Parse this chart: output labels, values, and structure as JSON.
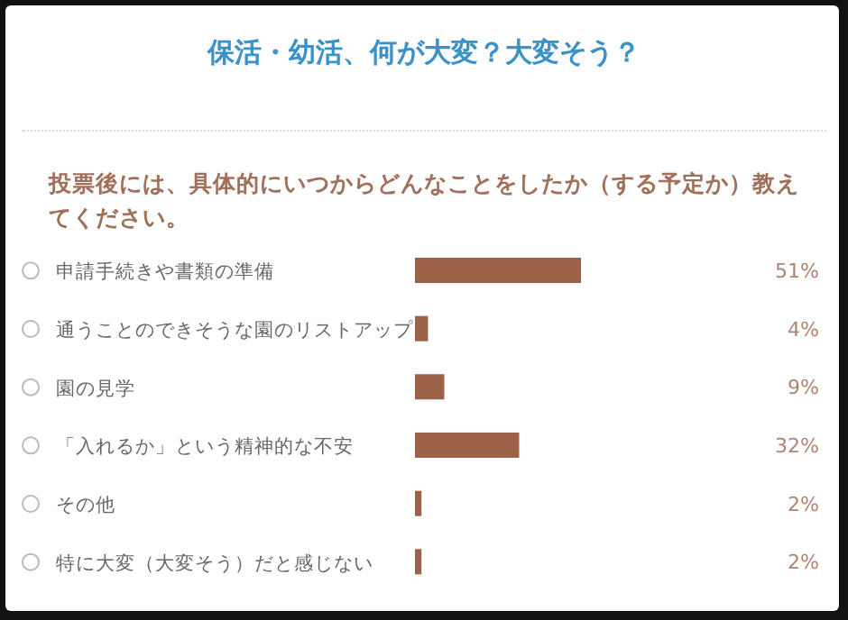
{
  "chart_data": {
    "type": "bar",
    "orientation": "horizontal",
    "title": "保活・幼活、何が大変？大変そう？",
    "subtitle": "投票後には、具体的にいつからどんなことをしたか（する予定か）教えてください。",
    "categories": [
      "申請手続きや書類の準備",
      "通うことのできそうな園のリストアップ",
      "園の見学",
      "「入れるか」という精神的な不安",
      "その他",
      "特に大変（大変そう）だと感じない"
    ],
    "values": [
      51,
      4,
      9,
      32,
      2,
      2
    ],
    "value_labels": [
      "51%",
      "4%",
      "9%",
      "32%",
      "2%",
      "2%"
    ],
    "color": "#9c6149"
  }
}
